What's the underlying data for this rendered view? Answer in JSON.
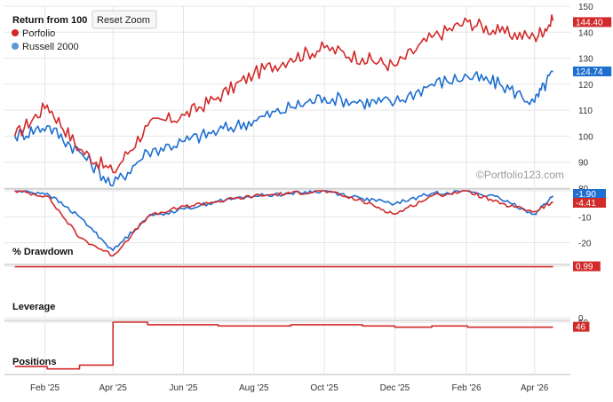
{
  "header": {
    "title": "Return from 100",
    "reset_zoom_label": "Reset Zoom"
  },
  "legend": [
    {
      "name": "Porfolio",
      "color": "#d62728"
    },
    {
      "name": "Russell 2000",
      "color": "#5b9bd5"
    }
  ],
  "watermark": "©Portfolio123.com",
  "colors": {
    "portfolio": "#d22a2a",
    "benchmark": "#1f6fd1",
    "grid": "#e6e6e6"
  },
  "x_labels": [
    "Feb '25",
    "Apr '25",
    "Jun '25",
    "Aug '25",
    "Oct '25",
    "Dec '25",
    "Feb '26",
    "Apr '26"
  ],
  "chart_data": [
    {
      "type": "line",
      "title": "Return from 100",
      "x": [
        "2025-01-06",
        "2025-02-03",
        "2025-03-03",
        "2025-04-01",
        "2025-05-01",
        "2025-06-02",
        "2025-07-01",
        "2025-08-01",
        "2025-09-02",
        "2025-10-01",
        "2025-11-03",
        "2025-12-01",
        "2026-01-02",
        "2026-02-02",
        "2026-03-02",
        "2026-04-01",
        "2026-04-17"
      ],
      "y_ticks": [
        "150",
        "140",
        "130",
        "120",
        "110",
        "100",
        "90",
        "80"
      ],
      "ylim": [
        80,
        150
      ],
      "series": [
        {
          "name": "Porfolio",
          "values": [
            100,
            112,
            95,
            86,
            104,
            108,
            115,
            124,
            130,
            134,
            130,
            127,
            138,
            144,
            140,
            138,
            144.4
          ]
        },
        {
          "name": "Russell 2000",
          "values": [
            100,
            104,
            94,
            81,
            94,
            98,
            102,
            106,
            111,
            115,
            113,
            113,
            120,
            123,
            120,
            113,
            124.74
          ]
        }
      ],
      "last_labels": [
        "144.40",
        "124.74"
      ]
    },
    {
      "type": "line",
      "title": "% Drawdown",
      "y_ticks": [
        "0",
        "-10",
        "-20"
      ],
      "ylim": [
        -27,
        0
      ],
      "series": [
        {
          "name": "Porfolio",
          "values": [
            0,
            -2,
            -18,
            -25,
            -10,
            -6,
            -4,
            -2,
            -1,
            0,
            -4,
            -9,
            -2,
            0,
            -5,
            -8,
            -4.41
          ]
        },
        {
          "name": "Russell 2000",
          "values": [
            0,
            -1,
            -10,
            -23,
            -10,
            -7,
            -4,
            -2,
            -1,
            0,
            -3,
            -5,
            -1,
            0,
            -3,
            -9,
            -1.9
          ]
        }
      ],
      "last_labels": [
        "-1.90",
        "-4.41"
      ]
    },
    {
      "type": "line",
      "title": "Leverage",
      "y_ticks": [
        "1",
        "0"
      ],
      "ylim": [
        0,
        1
      ],
      "series": [
        {
          "name": "Porfolio",
          "values": [
            0.99,
            0.99,
            0.99,
            0.99,
            0.99,
            0.99,
            0.99,
            0.99,
            0.99,
            0.99,
            0.99,
            0.99,
            0.99,
            0.99,
            0.99,
            0.99,
            0.99
          ]
        }
      ],
      "last_labels": [
        "0.99"
      ]
    },
    {
      "type": "line",
      "title": "Positions",
      "y_ticks": [
        "50"
      ],
      "ylim": [
        10,
        50
      ],
      "series": [
        {
          "name": "Porfolio",
          "values": [
            15,
            13,
            16,
            50,
            48,
            48,
            47,
            47,
            48,
            48,
            47,
            46,
            47,
            46,
            46,
            46,
            46
          ]
        }
      ],
      "last_labels": [
        "46"
      ]
    }
  ]
}
